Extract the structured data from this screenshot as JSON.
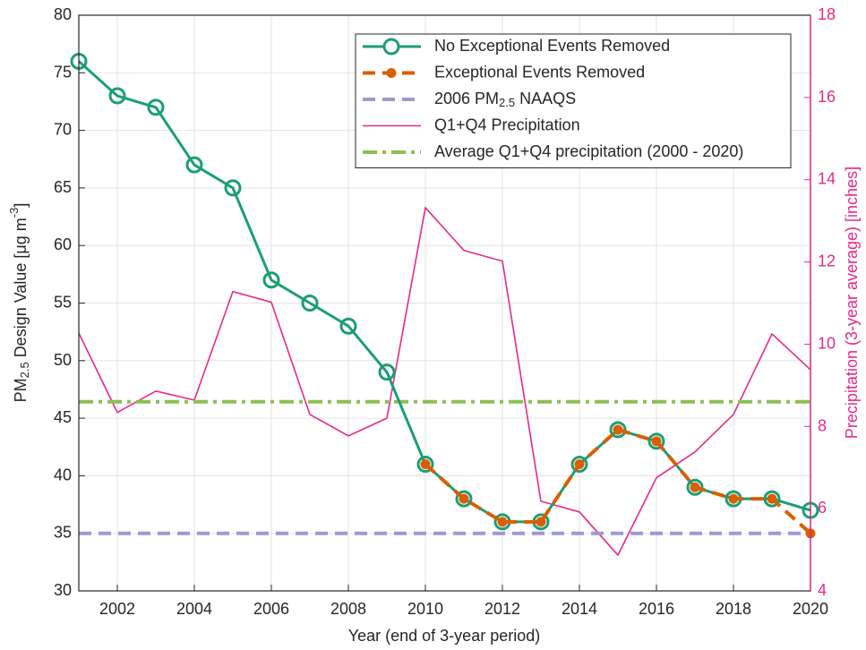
{
  "chart_data": {
    "type": "line",
    "x": [
      2001,
      2002,
      2003,
      2004,
      2005,
      2006,
      2007,
      2008,
      2009,
      2010,
      2011,
      2012,
      2013,
      2014,
      2015,
      2016,
      2017,
      2018,
      2019,
      2020
    ],
    "xlim": [
      2001,
      2020
    ],
    "xticks": [
      2002,
      2004,
      2006,
      2008,
      2010,
      2012,
      2014,
      2016,
      2018,
      2020
    ],
    "ylim": [
      30,
      80
    ],
    "yticks": [
      30,
      35,
      40,
      45,
      50,
      55,
      60,
      65,
      70,
      75,
      80
    ],
    "y2lim": [
      4,
      18
    ],
    "y2ticks": [
      4,
      6,
      8,
      10,
      12,
      14,
      16,
      18
    ],
    "x_label": "Year (end of 3-year period)",
    "y_label": "PM2.5 Design Value [μg m-3]",
    "y2_label": "Precipitation (3-year average) [inches]",
    "y2_color": "#e7298a",
    "grid": true,
    "legend": "upper right",
    "series": [
      {
        "name": "No Exceptional Events Removed",
        "color": "#1b9e77",
        "line_style": "solid",
        "marker": "circle-open",
        "values": [
          76,
          73,
          72,
          67,
          65,
          57,
          55,
          53,
          49,
          41,
          38,
          36,
          36,
          41,
          44,
          43,
          39,
          38,
          38,
          37
        ]
      },
      {
        "name": "Exceptional Events Removed",
        "color": "#d95f02",
        "line_style": "dashed",
        "marker": "circle",
        "values": [
          null,
          null,
          null,
          null,
          null,
          null,
          null,
          null,
          null,
          41,
          38,
          36,
          36,
          41,
          44,
          43,
          39,
          38,
          38,
          35
        ]
      },
      {
        "name": "2006 PM2.5 NAAQS",
        "color": "#9e9ad0",
        "line_style": "dashed",
        "y": 35
      },
      {
        "name": "Q1+Q4 Precipitation",
        "color": "#e7298a",
        "line_style": "thin",
        "axis": "y2",
        "values": [
          10.27,
          8.34,
          8.86,
          8.64,
          11.28,
          11.02,
          8.29,
          7.77,
          8.2,
          13.32,
          12.28,
          12.02,
          6.18,
          5.92,
          4.87,
          6.75,
          7.38,
          8.29,
          10.25,
          9.38
        ]
      },
      {
        "name": "Average Q1+Q4 precipitation (2000 - 2020)",
        "color": "#8cbf55",
        "line_style": "dashdot",
        "axis": "y2",
        "y": 8.6
      }
    ]
  }
}
